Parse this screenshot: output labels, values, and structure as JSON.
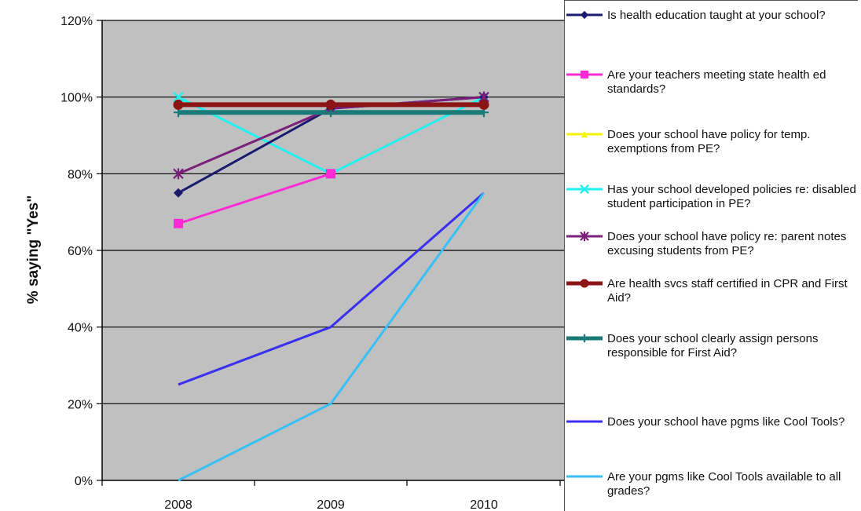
{
  "chart_data": {
    "type": "line",
    "categories": [
      "2008",
      "2009",
      "2010"
    ],
    "ylabel": "% saying \"Yes\"",
    "xlabel": "",
    "ylim": [
      0,
      120
    ],
    "yticks": [
      "0%",
      "20%",
      "40%",
      "60%",
      "80%",
      "100%",
      "120%"
    ],
    "grid": "horizontal",
    "legend_position": "right",
    "plot_background": "#c0c0c0",
    "series": [
      {
        "name": "Is health education taught at your school?",
        "values": [
          75,
          97,
          100
        ],
        "color": "#1a1a6e",
        "marker": "diamond"
      },
      {
        "name": "Are your teachers meeting state health ed standards?",
        "values": [
          67,
          80,
          null
        ],
        "color": "#ff2ad4",
        "marker": "square"
      },
      {
        "name": "Does your school have policy for temp. exemptions from PE?",
        "values": [
          null,
          null,
          null
        ],
        "color": "#f4f400",
        "marker": "triangle"
      },
      {
        "name": "Has your school developed policies re: disabled student participation in PE?",
        "values": [
          100,
          80,
          100
        ],
        "color": "#22f0f0",
        "marker": "x"
      },
      {
        "name": "Does your school have policy re: parent notes excusing students from PE?",
        "values": [
          80,
          97,
          100
        ],
        "color": "#7a1f7a",
        "marker": "star"
      },
      {
        "name": "Are health svcs staff certified in CPR and First Aid?",
        "values": [
          98,
          98,
          98
        ],
        "color": "#8b1414",
        "marker": "circle"
      },
      {
        "name": "Does your school clearly assign persons responsible for First Aid?",
        "values": [
          96,
          96,
          96
        ],
        "color": "#1a7a7a",
        "marker": "plus"
      },
      {
        "name": "Does your school have pgms like Cool Tools?",
        "values": [
          25,
          40,
          75
        ],
        "color": "#3a2ff0",
        "marker": "none"
      },
      {
        "name": "Are your pgms like Cool Tools available to all grades?",
        "values": [
          0,
          20,
          75
        ],
        "color": "#36c0f5",
        "marker": "none"
      }
    ]
  }
}
